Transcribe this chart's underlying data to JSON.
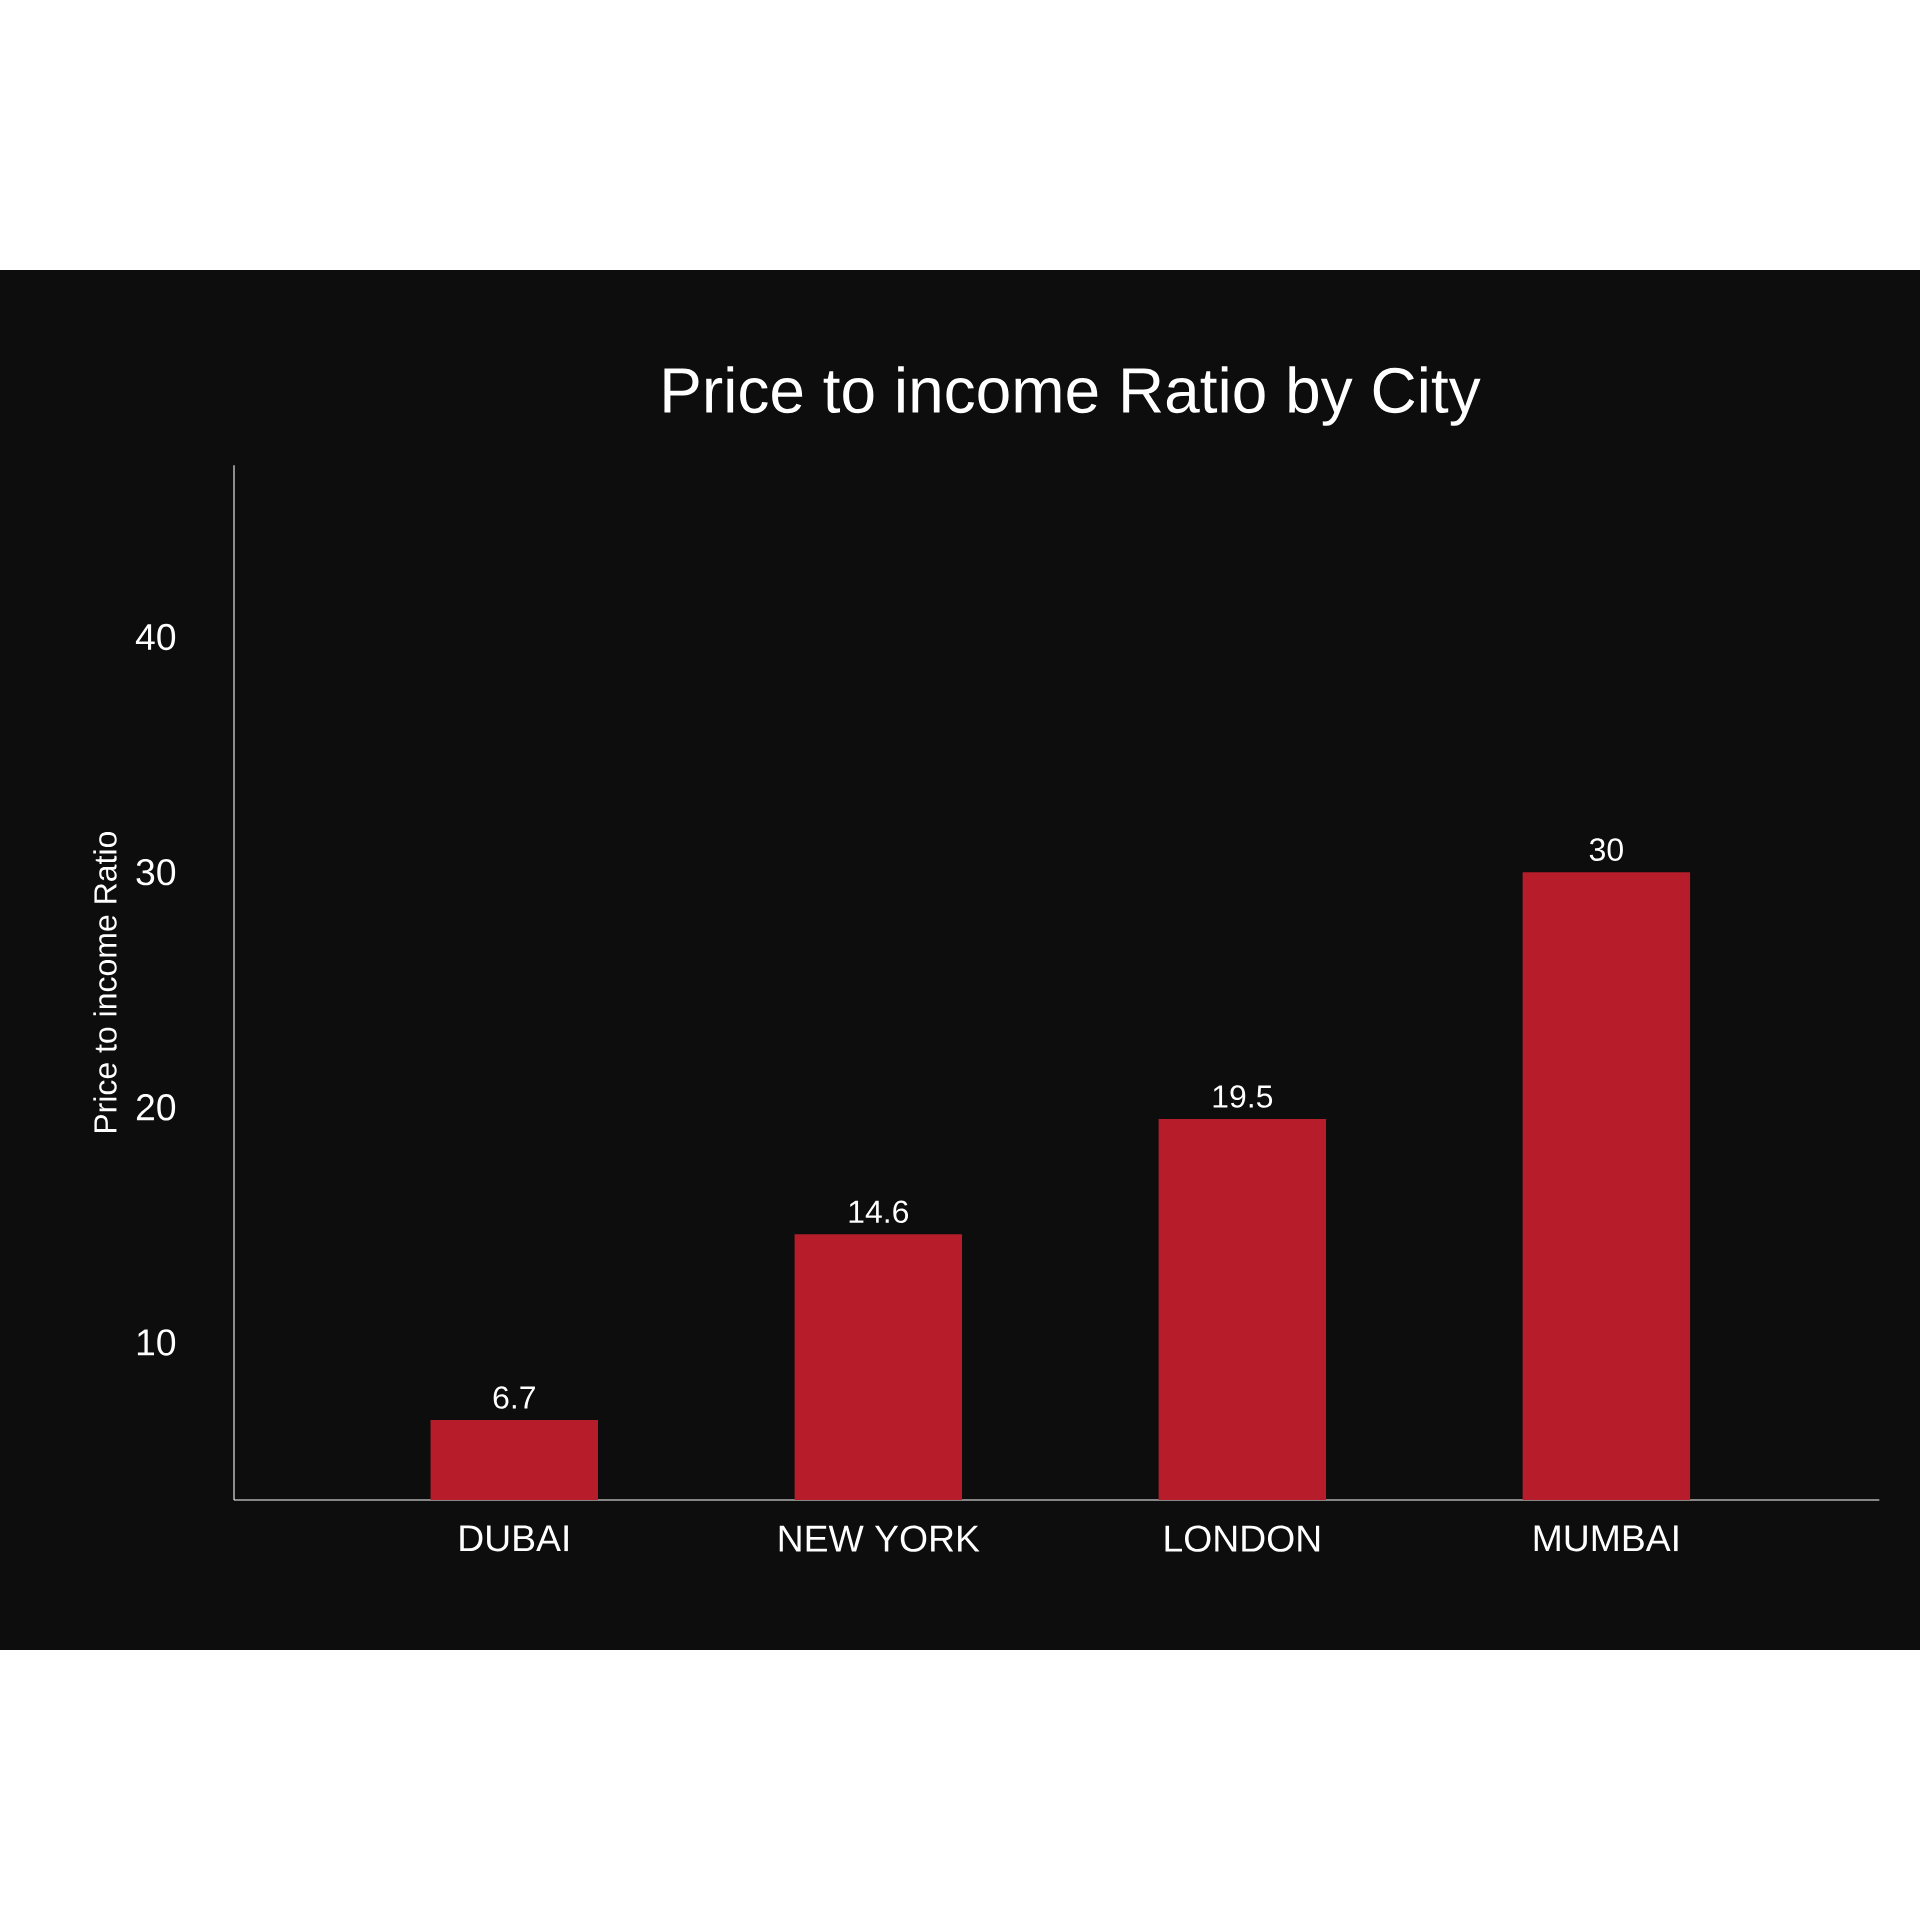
{
  "chart_data": {
    "type": "bar",
    "title": "Price to income Ratio by City",
    "ylabel": "Price to income Ratio",
    "categories": [
      "DUBAI",
      "NEW YORK",
      "LONDON",
      "MUMBAI"
    ],
    "values": [
      6.7,
      14.6,
      19.5,
      30
    ],
    "color": "#b71c2a",
    "ylim": [
      3.3,
      47.3
    ],
    "yticks": [
      10,
      20,
      30,
      40
    ],
    "grid": false,
    "data_labels": true
  }
}
